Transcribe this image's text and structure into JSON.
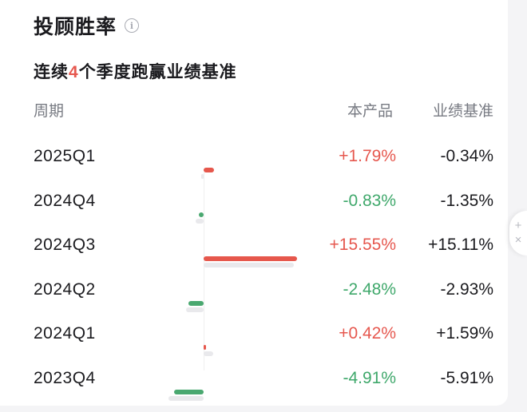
{
  "header": {
    "title": "投顾胜率"
  },
  "subtitle": {
    "prefix": "连续",
    "count": "4",
    "suffix": "个季度跑赢业绩基准"
  },
  "columns": {
    "period": "周期",
    "product": "本产品",
    "benchmark": "业绩基准"
  },
  "rows": [
    {
      "period": "2025Q1",
      "product": "+1.79%",
      "benchmark": "-0.34%",
      "product_value": 1.79,
      "benchmark_value": -0.34
    },
    {
      "period": "2024Q4",
      "product": "-0.83%",
      "benchmark": "-1.35%",
      "product_value": -0.83,
      "benchmark_value": -1.35
    },
    {
      "period": "2024Q3",
      "product": "+15.55%",
      "benchmark": "+15.11%",
      "product_value": 15.55,
      "benchmark_value": 15.11
    },
    {
      "period": "2024Q2",
      "product": "-2.48%",
      "benchmark": "-2.93%",
      "product_value": -2.48,
      "benchmark_value": -2.93
    },
    {
      "period": "2024Q1",
      "product": "+0.42%",
      "benchmark": "+1.59%",
      "product_value": 0.42,
      "benchmark_value": 1.59
    },
    {
      "period": "2023Q4",
      "product": "-4.91%",
      "benchmark": "-5.91%",
      "product_value": -4.91,
      "benchmark_value": -5.91
    }
  ],
  "colors": {
    "positive": "#e6584f",
    "negative": "#3fa86b",
    "benchmark_bar": "#e9e9ec"
  },
  "icons": {
    "info": "info-icon",
    "side_tab": "plus-close-icon"
  }
}
